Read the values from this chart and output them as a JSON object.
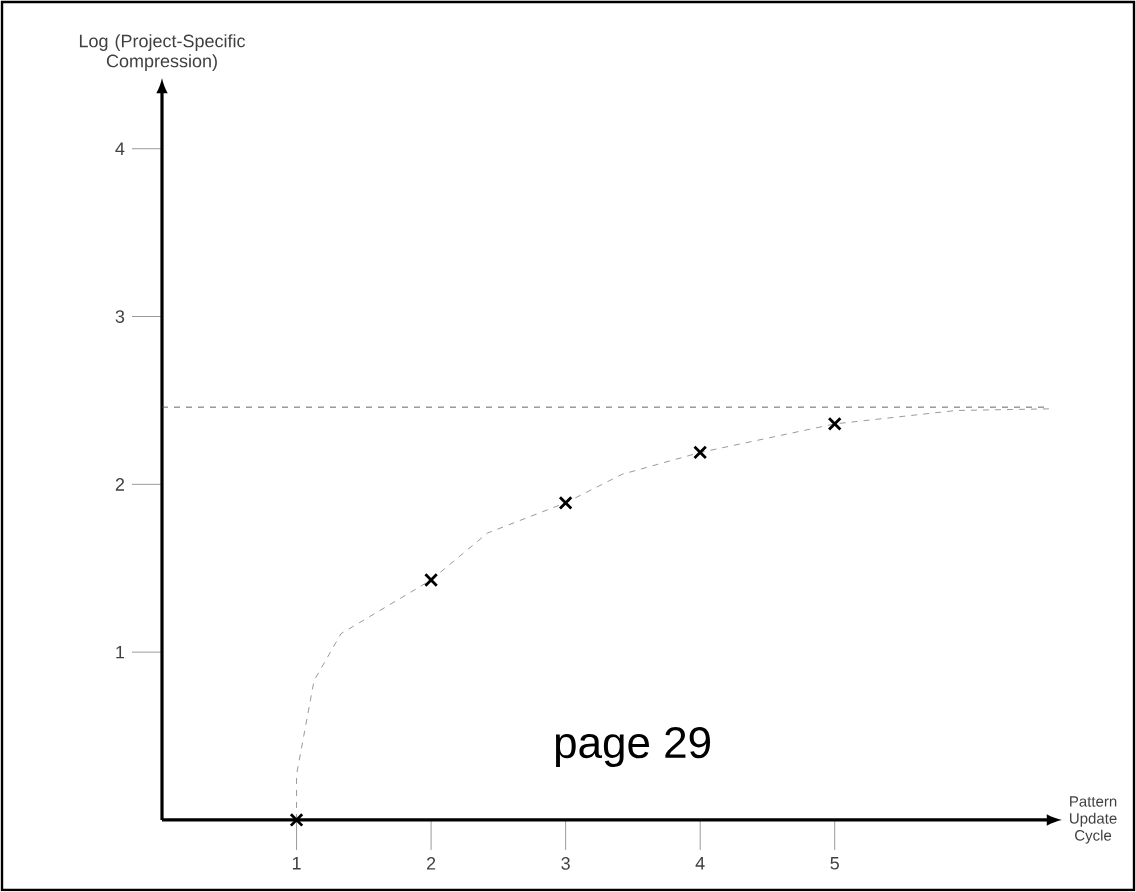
{
  "chart_data": {
    "type": "scatter",
    "xlabel": "Pattern Update Cycle",
    "ylabel": "Log (Project-Specific Compression)",
    "annotations": [
      "page 29"
    ],
    "xlim": [
      0,
      6.6
    ],
    "ylim": [
      0,
      4.35
    ],
    "xticks": [
      1,
      2,
      3,
      4,
      5
    ],
    "yticks": [
      1,
      2,
      3,
      4
    ],
    "marker": "cross",
    "series": [
      {
        "color": "#000000",
        "x": [
          1,
          2,
          3,
          4,
          5
        ],
        "values": [
          0,
          1.43,
          1.89,
          2.19,
          2.36
        ]
      },
      {
        "type": "line",
        "line_style": "dashed",
        "marker": "none",
        "color": "#808080",
        "x": [
          1,
          1.0,
          1.13,
          1.33,
          2,
          2.42,
          3,
          3.42,
          4,
          5,
          5.9,
          6.6
        ],
        "values": [
          0,
          0.27,
          0.83,
          1.11,
          1.43,
          1.71,
          1.89,
          2.06,
          2.19,
          2.36,
          2.44,
          2.45
        ]
      }
    ],
    "ref_lines": [
      {
        "axis": "y",
        "value": 2.46,
        "line_style": "dashed",
        "color": "#404040"
      }
    ]
  }
}
